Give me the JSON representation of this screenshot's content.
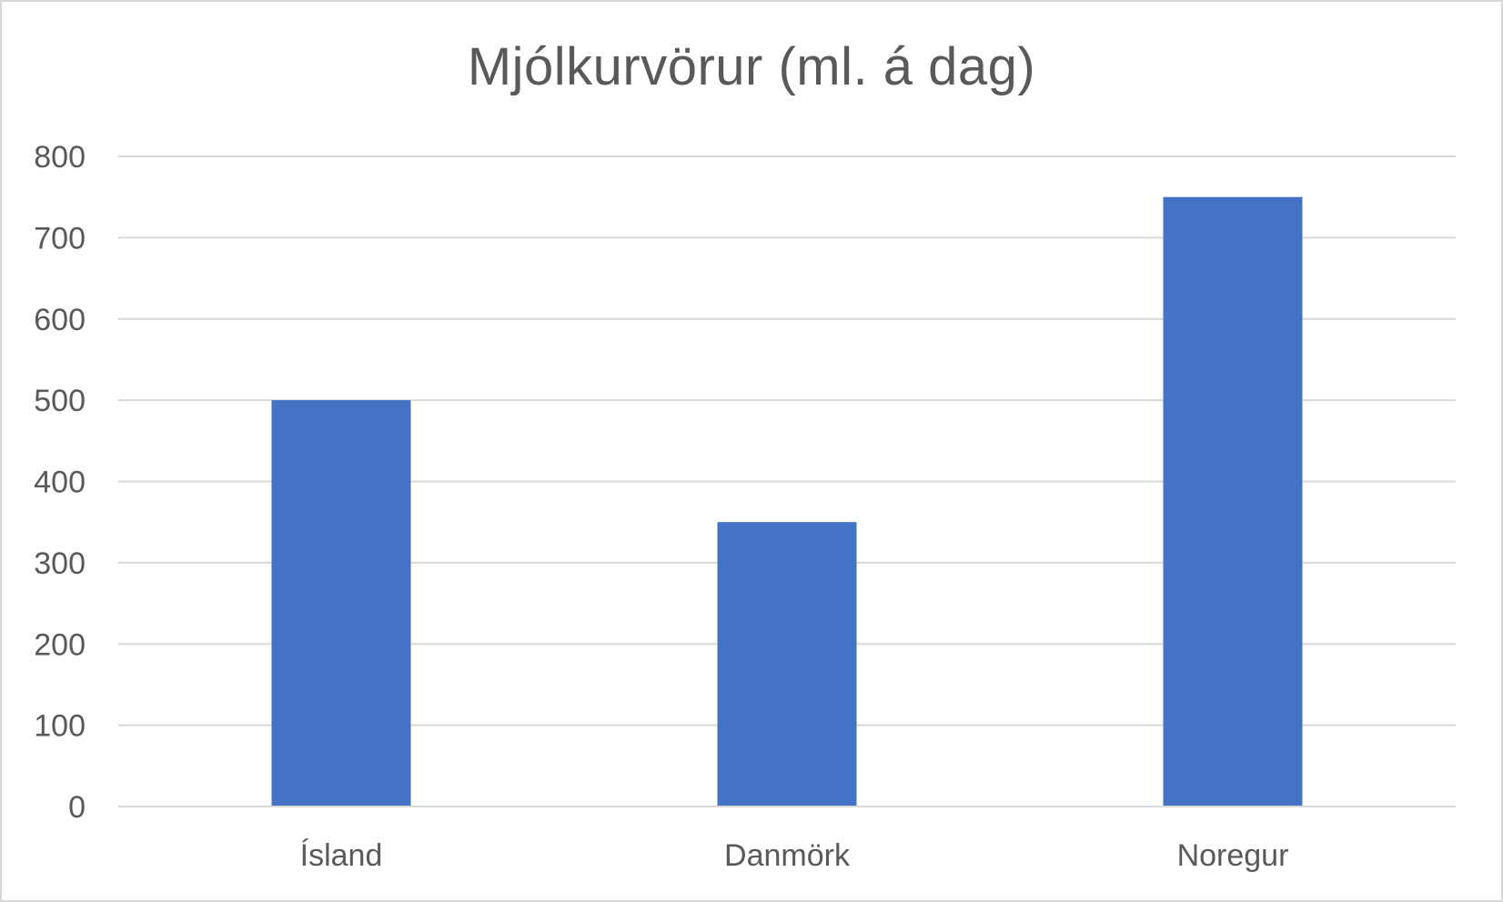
{
  "chart_data": {
    "type": "bar",
    "title": "Mjólkurvörur (ml. á dag)",
    "xlabel": "",
    "ylabel": "",
    "categories": [
      "Ísland",
      "Danmörk",
      "Noregur"
    ],
    "values": [
      500,
      350,
      750
    ],
    "ylim": [
      0,
      800
    ],
    "yticks": [
      "0",
      "100",
      "200",
      "300",
      "400",
      "500",
      "600",
      "700",
      "800"
    ],
    "grid": true,
    "legend": "none",
    "bar_color": "#4472C4"
  }
}
